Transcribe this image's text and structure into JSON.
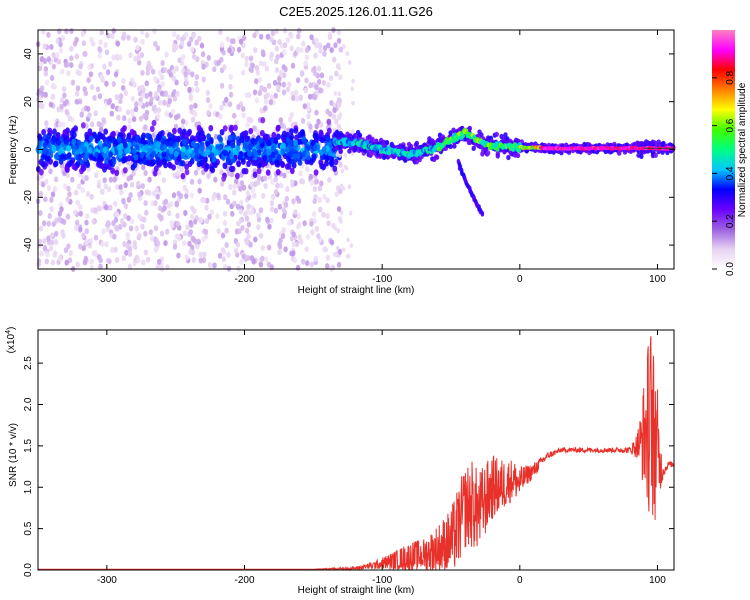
{
  "title": "C2E5.2025.126.01.11.G26",
  "chart_data": [
    {
      "type": "heatmap",
      "xlabel": "Height of straight line (km)",
      "ylabel": "Frequency (Hz)",
      "xlim": [
        -350,
        112
      ],
      "ylim": [
        -50,
        50
      ],
      "x_ticks": [
        -300,
        -200,
        -100,
        0,
        100
      ],
      "y_ticks": [
        -40,
        -20,
        0,
        20,
        40
      ],
      "colorbar": {
        "label": "Normalized spectral amplitude",
        "range": [
          0.0,
          1.0
        ],
        "ticks": [
          "0.0",
          "0.2",
          "0.4",
          "0.6",
          "0.8"
        ],
        "colormap": [
          "#ffffff",
          "#e6d2f2",
          "#9b5fe0",
          "#6a00ff",
          "#0000ff",
          "#00c8ff",
          "#00ff80",
          "#40ff00",
          "#ffff00",
          "#ff8000",
          "#ff0000",
          "#ff00ff",
          "#ff80c0"
        ]
      },
      "features": [
        {
          "name": "noise",
          "x_range": [
            -350,
            -130
          ],
          "f_spread": 50,
          "center_f": 0,
          "band_halfwidth": 8
        },
        {
          "name": "track",
          "points": [
            [
              -135,
              3
            ],
            [
              -120,
              3
            ],
            [
              -100,
              0
            ],
            [
              -80,
              -2
            ],
            [
              -60,
              1
            ],
            [
              -40,
              7
            ],
            [
              -25,
              2
            ],
            [
              0,
              1
            ],
            [
              20,
              0.5
            ],
            [
              100,
              0.5
            ],
            [
              112,
              0.5
            ]
          ]
        },
        {
          "name": "branch",
          "points": [
            [
              -45,
              -5
            ],
            [
              -38,
              -15
            ],
            [
              -32,
              -22
            ],
            [
              -27,
              -27
            ]
          ]
        }
      ]
    },
    {
      "type": "line",
      "xlabel": "Height of straight line (km)",
      "ylabel": "SNR (10 * v/v)",
      "scale_label": "(x10",
      "scale_exp": "4",
      "xlim": [
        -350,
        112
      ],
      "ylim": [
        0,
        2.9
      ],
      "x_ticks": [
        -300,
        -200,
        -100,
        0,
        100
      ],
      "y_ticks": [
        "0.0",
        "0.5",
        "1.0",
        "1.5",
        "2.0",
        "2.5"
      ],
      "series": [
        {
          "color": "#e8312a",
          "x": [
            -350,
            -300,
            -250,
            -200,
            -150,
            -120,
            -105,
            -90,
            -80,
            -70,
            -60,
            -50,
            -45,
            -40,
            -35,
            -30,
            -25,
            -20,
            -15,
            -10,
            -5,
            0,
            5,
            10,
            15,
            20,
            30,
            40,
            50,
            60,
            70,
            80,
            85,
            88,
            92,
            95,
            98,
            100,
            102,
            105,
            108,
            112
          ],
          "values": [
            0.01,
            0.01,
            0.01,
            0.01,
            0.01,
            0.02,
            0.06,
            0.12,
            0.16,
            0.18,
            0.25,
            0.35,
            0.5,
            0.75,
            0.8,
            0.7,
            0.85,
            1.0,
            1.0,
            1.05,
            1.1,
            1.05,
            1.15,
            1.2,
            1.3,
            1.38,
            1.45,
            1.45,
            1.45,
            1.45,
            1.45,
            1.45,
            1.5,
            1.55,
            1.7,
            1.8,
            1.6,
            1.4,
            1.25,
            1.2,
            1.28,
            1.27
          ],
          "noise": [
            0,
            0,
            0,
            0,
            0,
            0.02,
            0.05,
            0.12,
            0.18,
            0.2,
            0.3,
            0.4,
            0.5,
            0.5,
            0.55,
            0.5,
            0.45,
            0.4,
            0.35,
            0.3,
            0.25,
            0.2,
            0.12,
            0.1,
            0.06,
            0.04,
            0.03,
            0.03,
            0.03,
            0.03,
            0.03,
            0.04,
            0.15,
            0.4,
            0.9,
            1.2,
            1.0,
            0.8,
            0.3,
            0.05,
            0.04,
            0.03
          ]
        }
      ]
    }
  ]
}
